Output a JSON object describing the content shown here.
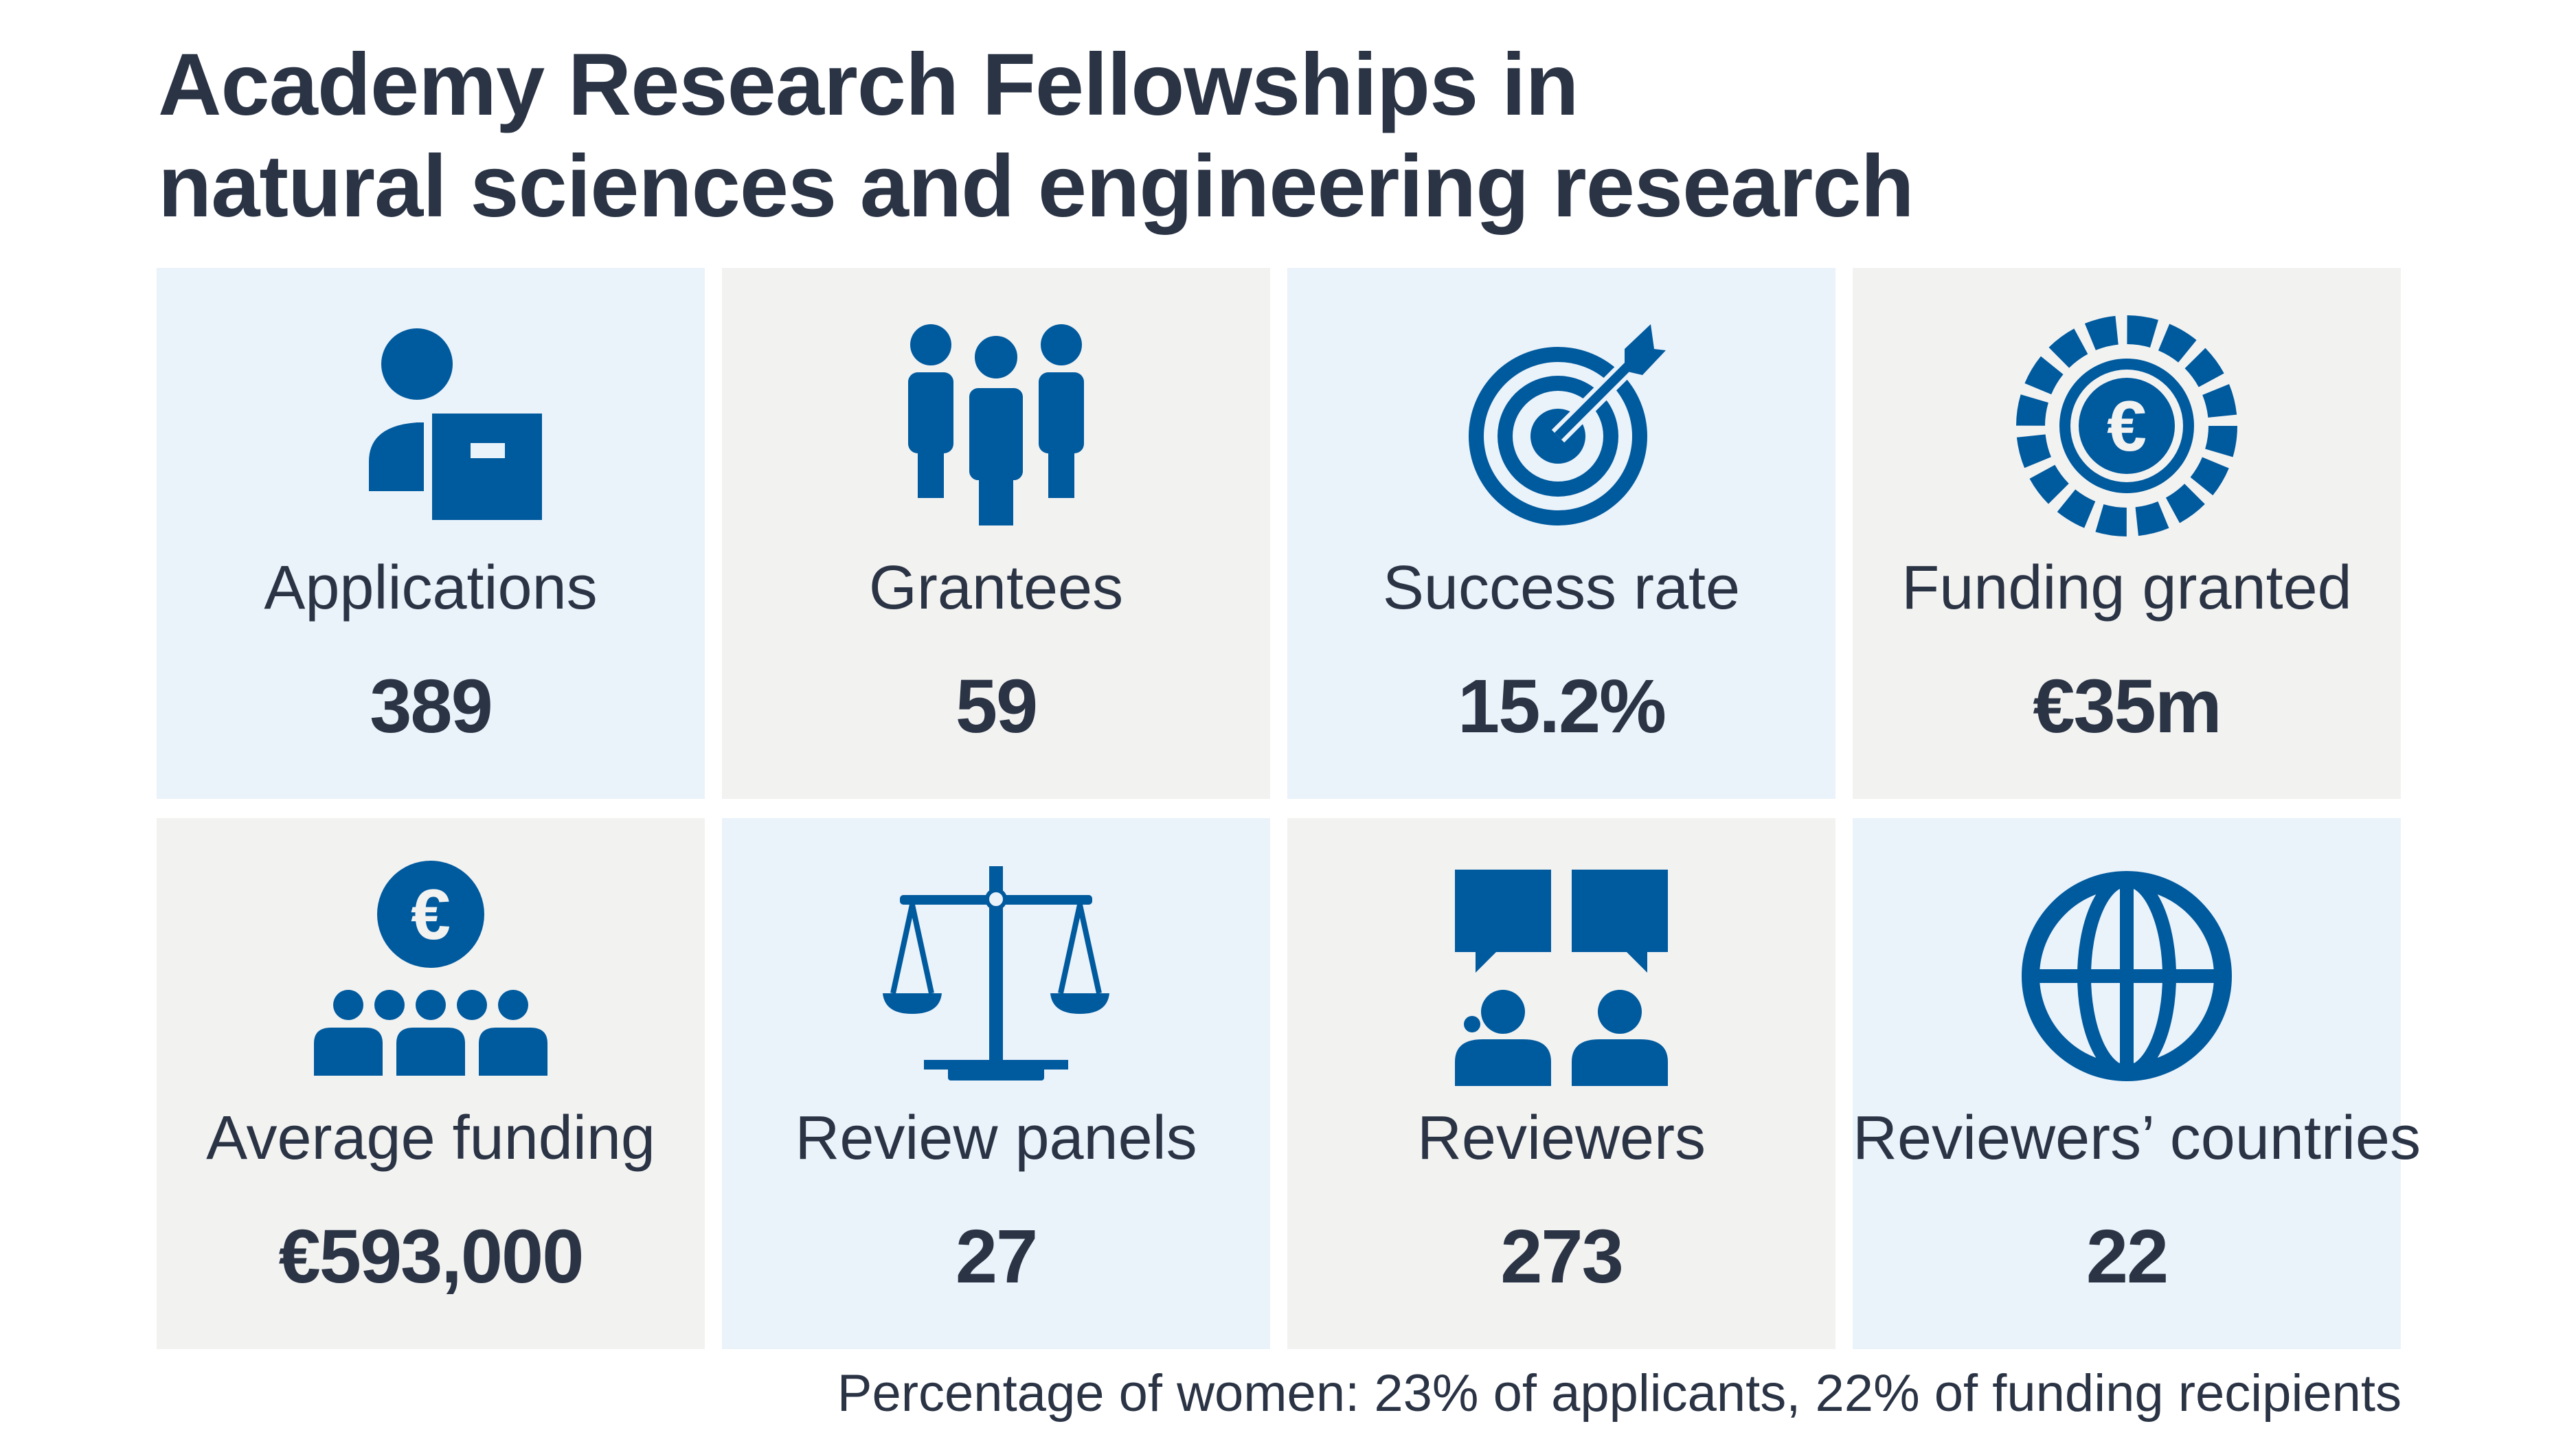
{
  "title": {
    "line1": "Academy Research Fellowships in",
    "line2": "natural sciences and engineering research"
  },
  "colors": {
    "icon": "#005a9e",
    "text": "#2b3445",
    "blue_tile": "#eaf2fa",
    "grey_tile": "#f2f2f1"
  },
  "stats": [
    {
      "label": "Applications",
      "value": "389",
      "icon": "person-with-application-icon"
    },
    {
      "label": "Grantees",
      "value": "59",
      "icon": "group-of-people-icon"
    },
    {
      "label": "Success rate",
      "value": "15.2%",
      "icon": "target-icon"
    },
    {
      "label": "Funding granted",
      "value": "€35m",
      "icon": "euro-coin-icon"
    },
    {
      "label": "Average funding",
      "value": "€593,000",
      "icon": "euro-audience-icon"
    },
    {
      "label": "Review panels",
      "value": "27",
      "icon": "scales-icon"
    },
    {
      "label": "Reviewers",
      "value": "273",
      "icon": "reviewers-speech-icon"
    },
    {
      "label": "Reviewers’ countries",
      "value": "22",
      "icon": "globe-icon"
    }
  ],
  "footnote": {
    "prefix": "Percentage of women: ",
    "v1": "23%",
    "mid": " of applicants, ",
    "v2": "22%",
    "suffix": " of funding recipients"
  }
}
